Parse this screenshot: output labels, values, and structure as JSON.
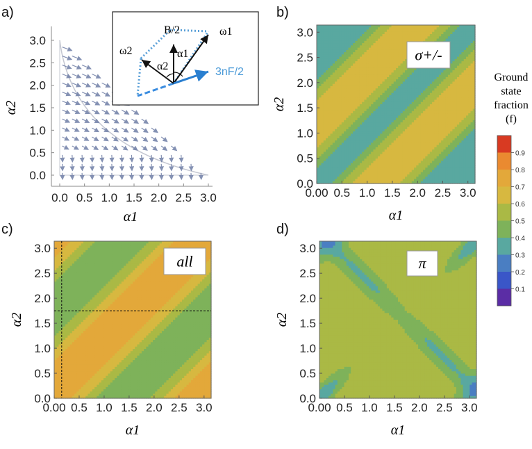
{
  "legend": {
    "title_lines": [
      "Ground",
      "state",
      "fraction",
      "(f)"
    ],
    "ticks": [
      "0.9",
      "0.8",
      "0.7",
      "0.6",
      "0.5",
      "0.4",
      "0.3",
      "0.2",
      "0.1"
    ],
    "colors": [
      "#d83a22",
      "#ea8a30",
      "#e3a83a",
      "#d7b840",
      "#aab945",
      "#7eb25a",
      "#59a8a0",
      "#4a7ec2",
      "#3a56c8",
      "#5b2da5"
    ]
  },
  "chart_data": [
    {
      "panel_label": "a)",
      "type": "vector_field",
      "xlabel": "α1",
      "ylabel": "α2",
      "xlim": [
        0,
        3.14159
      ],
      "ylim": [
        0,
        3.14159
      ],
      "x_ticks": [
        "0.0",
        "0.5",
        "1.0",
        "1.5",
        "2.0",
        "2.5",
        "3.0"
      ],
      "y_ticks": [
        "0.0",
        "0.5",
        "1.0",
        "1.5",
        "2.0",
        "2.5",
        "3.0"
      ],
      "region": "α1 + α2 ≤ π",
      "inset": {
        "labels": {
          "b": "B/2",
          "w1": "ω1",
          "w2": "ω2",
          "a1": "α1",
          "a2": "α2",
          "f": "3nF/2"
        }
      }
    },
    {
      "panel_label": "b)",
      "type": "contour",
      "title": "σ+/-",
      "xlabel": "α1",
      "ylabel": "α2",
      "xlim": [
        0,
        3.14159
      ],
      "ylim": [
        0,
        3.14159
      ],
      "x_ticks": [
        "0.00",
        "0.5",
        "1.0",
        "1.5",
        "2.0",
        "2.5",
        "3.0"
      ],
      "y_ticks": [
        "0.0",
        "0.5",
        "1.0",
        "1.5",
        "2.0",
        "2.5",
        "3.0"
      ],
      "levels": [
        0.1,
        0.2,
        0.3,
        0.4,
        0.5,
        0.6,
        0.7,
        0.8,
        0.9
      ],
      "min_value": 0.3,
      "max_value": 0.7
    },
    {
      "panel_label": "c)",
      "type": "contour",
      "title": "all",
      "xlabel": "α1",
      "ylabel": "α2",
      "xlim": [
        0,
        3.14159
      ],
      "ylim": [
        0,
        3.14159
      ],
      "x_ticks": [
        "0.00",
        "0.5",
        "1.0",
        "1.5",
        "2.0",
        "2.5",
        "3.0"
      ],
      "y_ticks": [
        "0.0",
        "0.5",
        "1.0",
        "1.5",
        "2.0",
        "2.5",
        "3.0"
      ],
      "levels": [
        0.1,
        0.2,
        0.3,
        0.4,
        0.5,
        0.6,
        0.7,
        0.8,
        0.9
      ],
      "min_value": 0.4,
      "max_value": 0.8,
      "marker_lines": {
        "alpha1": 0.15,
        "alpha2": 1.75
      }
    },
    {
      "panel_label": "d)",
      "type": "contour",
      "title": "π",
      "xlabel": "α1",
      "ylabel": "α2",
      "xlim": [
        0,
        3.14159
      ],
      "ylim": [
        0,
        3.14159
      ],
      "x_ticks": [
        "0.00",
        "0.5",
        "1.0",
        "1.5",
        "2.0",
        "2.5",
        "3.0"
      ],
      "y_ticks": [
        "0.0",
        "0.5",
        "1.0",
        "1.5",
        "2.0",
        "2.5",
        "3.0"
      ],
      "levels": [
        0.1,
        0.2,
        0.3,
        0.4,
        0.5,
        0.6,
        0.7,
        0.8,
        0.9
      ],
      "min_value": 0.3,
      "max_value": 0.6
    }
  ]
}
